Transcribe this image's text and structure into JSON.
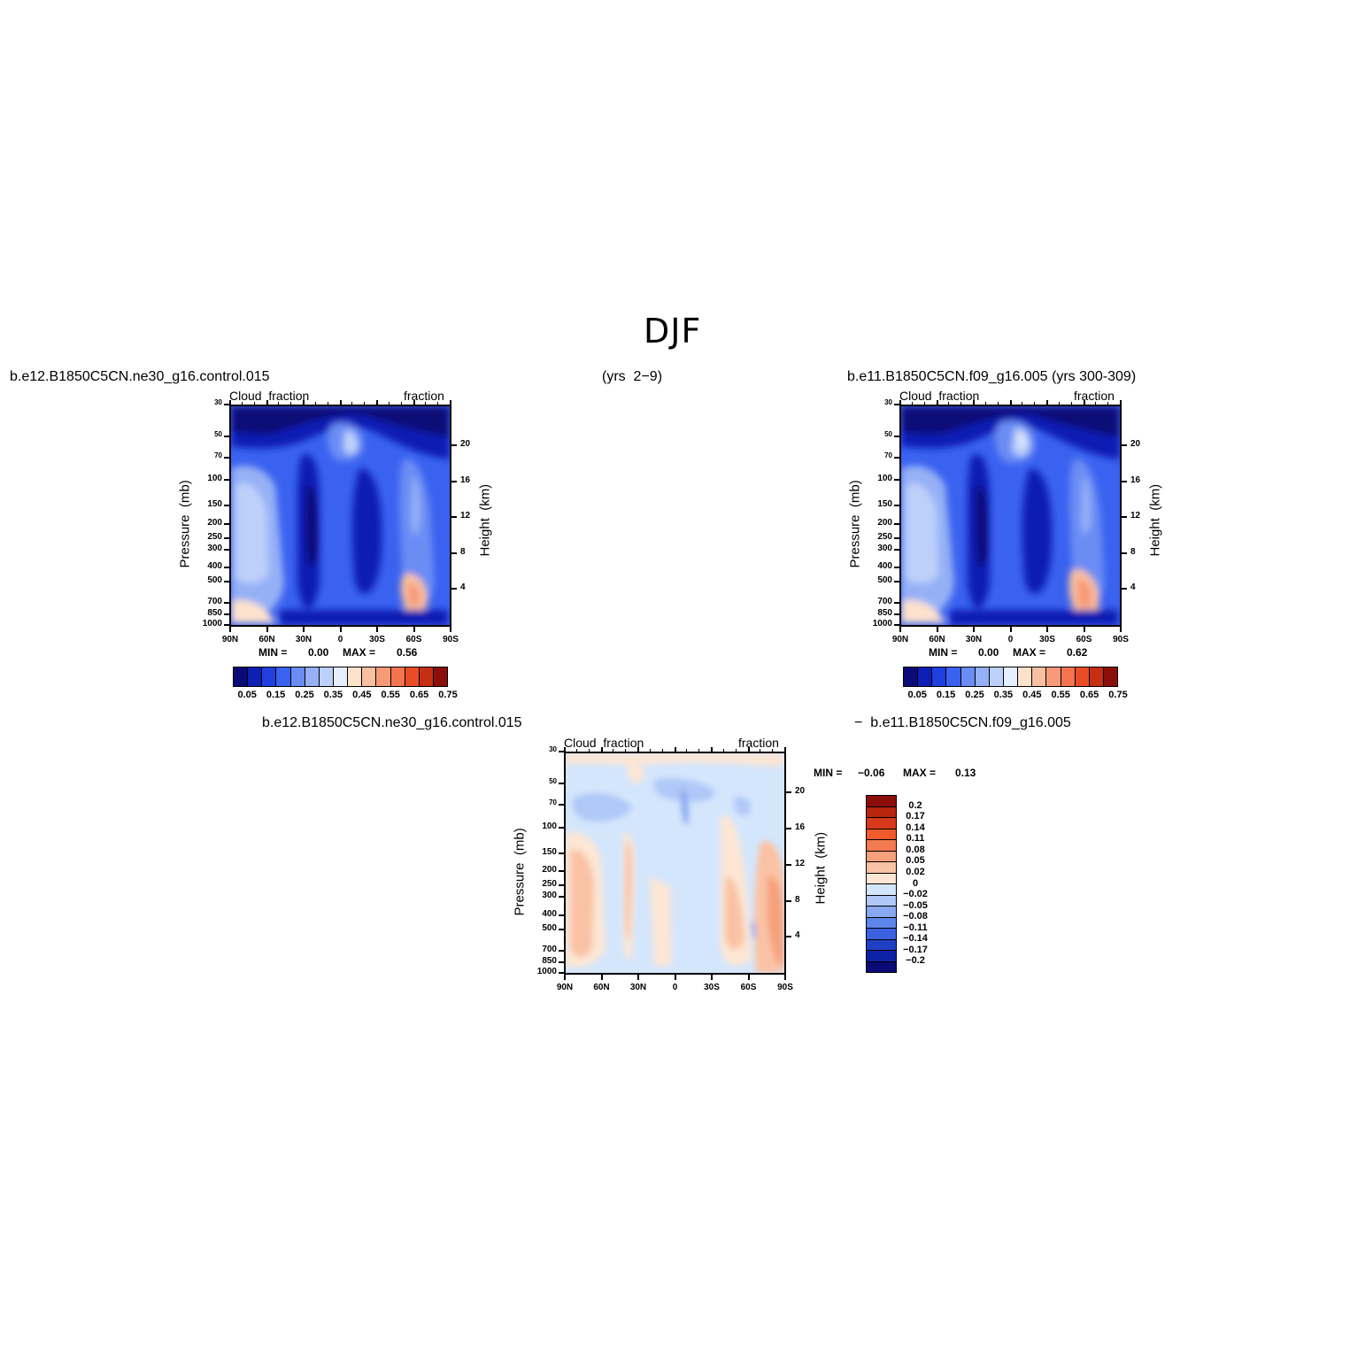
{
  "title": "DJF",
  "panels": [
    {
      "case": "b.e12.B1850C5CN.ne30_g16.control.015",
      "left_label": "Cloud  fraction",
      "right_label": "fraction",
      "min_label": "MIN =",
      "min": "0.00",
      "max_label": "MAX =",
      "max": "0.56"
    },
    {
      "case": "b.e11.B1850C5CN.f09_g16.005 (yrs 300-309)",
      "left_label": "Cloud  fraction",
      "right_label": "fraction",
      "min_label": "MIN =",
      "min": "0.00",
      "max_label": "MAX =",
      "max": "0.62"
    },
    {
      "case_left": "b.e12.B1850C5CN.ne30_g16.control.015",
      "case_right": "−  b.e11.B1850C5CN.f09_g16.005",
      "left_label": "Cloud  fraction",
      "right_label": "fraction",
      "min_label": "MIN =",
      "min": "−0.06",
      "max_label": "MAX =",
      "max": "0.13"
    }
  ],
  "years_label": "(yrs  2−9)",
  "ylabel": "Pressure  (mb)",
  "ylabel_right": "Height  (km)",
  "pressure_ticks": [
    "30",
    "50",
    "70",
    "100",
    "150",
    "200",
    "250",
    "300",
    "400",
    "500",
    "700",
    "850",
    "1000"
  ],
  "height_ticks": [
    "20",
    "16",
    "12",
    "8",
    "4"
  ],
  "lat_ticks": [
    "90N",
    "60N",
    "30N",
    "0",
    "30S",
    "60S",
    "90S"
  ],
  "colorbar_levels": [
    "0.05",
    "0.15",
    "0.25",
    "0.35",
    "0.45",
    "0.55",
    "0.65",
    "0.75"
  ],
  "colorbar_colors": [
    "#0a0a78",
    "#0d1fb4",
    "#1f3fe0",
    "#3a62f0",
    "#6a8cf4",
    "#95b0f6",
    "#bdd0fa",
    "#e4eefe",
    "#fde2cc",
    "#f8bfa0",
    "#f79a78",
    "#f5744e",
    "#ea4d26",
    "#c62f12",
    "#8c0e0a"
  ],
  "diff_levels": [
    "0.2",
    "0.17",
    "0.14",
    "0.11",
    "0.08",
    "0.05",
    "0.02",
    "0",
    "−0.02",
    "−0.05",
    "−0.08",
    "−0.11",
    "−0.14",
    "−0.17",
    "−0.2"
  ],
  "diff_colors": [
    "#8c0e0a",
    "#b7250c",
    "#d8391a",
    "#f05a2c",
    "#f47a52",
    "#f6a07c",
    "#fac2a4",
    "#fde6d4",
    "#d4e6fc",
    "#b0c8f8",
    "#8aa8f2",
    "#5e86ea",
    "#3a62e0",
    "#1f3fc4",
    "#0d22a6",
    "#0a0a78"
  ],
  "chart_data": [
    {
      "type": "heatmap",
      "title": "b.e12.B1850C5CN.ne30_g16.control.015",
      "variable": "Cloud fraction",
      "xlabel": "",
      "ylabel": "Pressure (mb)",
      "ylabel_right": "Height (km)",
      "x_ticks": [
        "90N",
        "60N",
        "30N",
        "0",
        "30S",
        "60S",
        "90S"
      ],
      "y_ticks": [
        30,
        50,
        70,
        100,
        150,
        200,
        250,
        300,
        400,
        500,
        700,
        850,
        1000
      ],
      "y_scale": "log",
      "min": 0.0,
      "max": 0.56
    },
    {
      "type": "heatmap",
      "title": "b.e11.B1850C5CN.f09_g16.005 (yrs 300-309)",
      "variable": "Cloud fraction",
      "xlabel": "",
      "ylabel": "Pressure (mb)",
      "ylabel_right": "Height (km)",
      "x_ticks": [
        "90N",
        "60N",
        "30N",
        "0",
        "30S",
        "60S",
        "90S"
      ],
      "y_ticks": [
        30,
        50,
        70,
        100,
        150,
        200,
        250,
        300,
        400,
        500,
        700,
        850,
        1000
      ],
      "y_scale": "log",
      "min": 0.0,
      "max": 0.62
    },
    {
      "type": "heatmap",
      "title": "b.e12.B1850C5CN.ne30_g16.control.015 − b.e11.B1850C5CN.f09_g16.005",
      "variable": "Cloud fraction",
      "xlabel": "",
      "ylabel": "Pressure (mb)",
      "ylabel_right": "Height (km)",
      "x_ticks": [
        "90N",
        "60N",
        "30N",
        "0",
        "30S",
        "60S",
        "90S"
      ],
      "y_ticks": [
        30,
        50,
        70,
        100,
        150,
        200,
        250,
        300,
        400,
        500,
        700,
        850,
        1000
      ],
      "y_scale": "log",
      "min": -0.06,
      "max": 0.13
    }
  ]
}
